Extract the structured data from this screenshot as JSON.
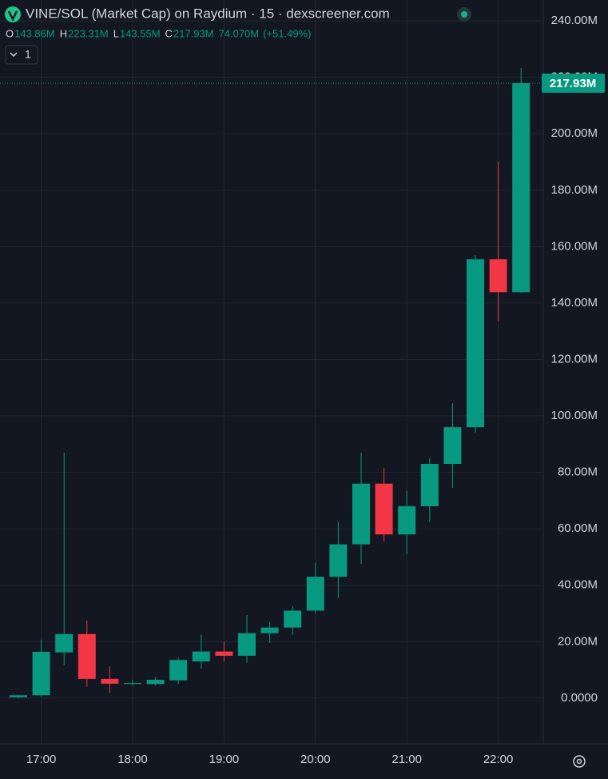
{
  "chart_data": {
    "type": "candlestick",
    "title": "VINE/SOL (Market Cap) on Raydium · 15 · dexscreener.com",
    "ohlc_legend": [
      {
        "label": "O",
        "value": "143.86M"
      },
      {
        "label": "H",
        "value": "223.31M"
      },
      {
        "label": "L",
        "value": "143.55M"
      },
      {
        "label": "C",
        "value": "217.93M"
      }
    ],
    "volume": "74.070M",
    "change": "(+51.49%)",
    "indicator_count": "1",
    "categories": [
      null,
      "17:00",
      null,
      null,
      null,
      "18:00",
      null,
      null,
      null,
      "19:00",
      null,
      null,
      null,
      "20:00",
      null,
      null,
      null,
      "21:00",
      null,
      null,
      null,
      "22:00",
      null
    ],
    "open": [
      0.3,
      1,
      16.2,
      22.7,
      6.8,
      5,
      5,
      6.3,
      13,
      16.5,
      15,
      23,
      25,
      31,
      43,
      54.5,
      76,
      58,
      68,
      83,
      96,
      155.5,
      143.86
    ],
    "high": [
      1.2,
      20.7,
      87,
      27.5,
      11.3,
      6.5,
      7.5,
      14.5,
      22.5,
      20,
      29.5,
      27,
      32.5,
      48,
      62.5,
      87,
      81.5,
      73.5,
      85,
      104.5,
      157,
      190,
      223.31
    ],
    "low": [
      0,
      0.5,
      11.6,
      4,
      1.8,
      4.5,
      4.5,
      5,
      10.5,
      13,
      12.5,
      19.5,
      22.5,
      30,
      35.5,
      47.5,
      55.5,
      51,
      62.5,
      74.5,
      94,
      133.5,
      143.55
    ],
    "close": [
      1,
      16.4,
      22.7,
      6.8,
      5.1,
      5.3,
      6.5,
      13.5,
      16.5,
      15,
      23,
      25,
      31,
      43,
      54.5,
      76,
      58,
      68,
      83,
      96,
      155.5,
      143.86,
      217.93
    ],
    "up_color": "#089981",
    "down_color": "#f23645",
    "last_price": {
      "value": 217.93,
      "label": "217.93M"
    },
    "ylim": [
      -16.2,
      247.4
    ],
    "yticks": [
      {
        "value": 0,
        "label": "0.0000"
      },
      {
        "value": 20,
        "label": "20.00M"
      },
      {
        "value": 40,
        "label": "40.00M"
      },
      {
        "value": 60,
        "label": "60.00M"
      },
      {
        "value": 80,
        "label": "80.00M"
      },
      {
        "value": 100,
        "label": "100.00M"
      },
      {
        "value": 120,
        "label": "120.00M"
      },
      {
        "value": 140,
        "label": "140.00M"
      },
      {
        "value": 160,
        "label": "160.00M"
      },
      {
        "value": 180,
        "label": "180.00M"
      },
      {
        "value": 200,
        "label": "200.00M"
      },
      {
        "value": 220,
        "label": "220.00M"
      },
      {
        "value": 240,
        "label": "240.00M"
      }
    ],
    "grid": true
  }
}
